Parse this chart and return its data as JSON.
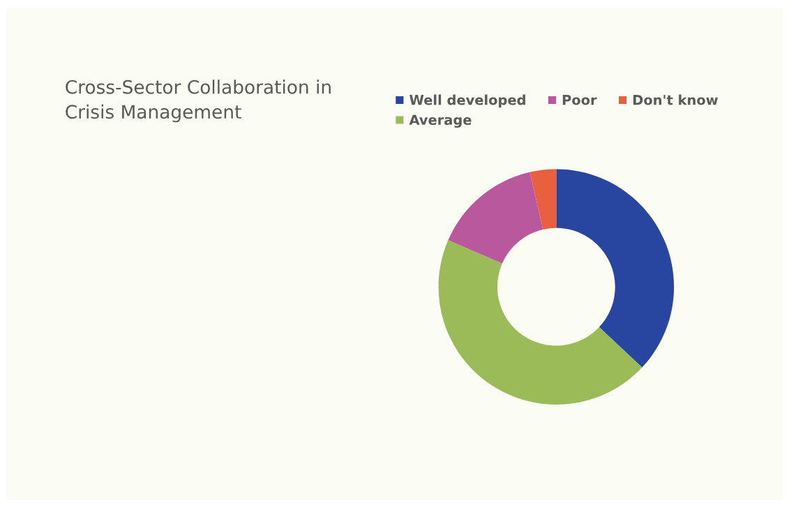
{
  "chart_data": {
    "type": "donut",
    "title": "Cross-Sector Collaboration in\nCrisis Management",
    "categories": [
      "Well developed",
      "Average",
      "Poor",
      "Don't know"
    ],
    "values": [
      37,
      44.5,
      14.9,
      3.6
    ],
    "colors": [
      "#2846a0",
      "#9bbb59",
      "#b9589c",
      "#e8603f"
    ],
    "legend": "top"
  }
}
